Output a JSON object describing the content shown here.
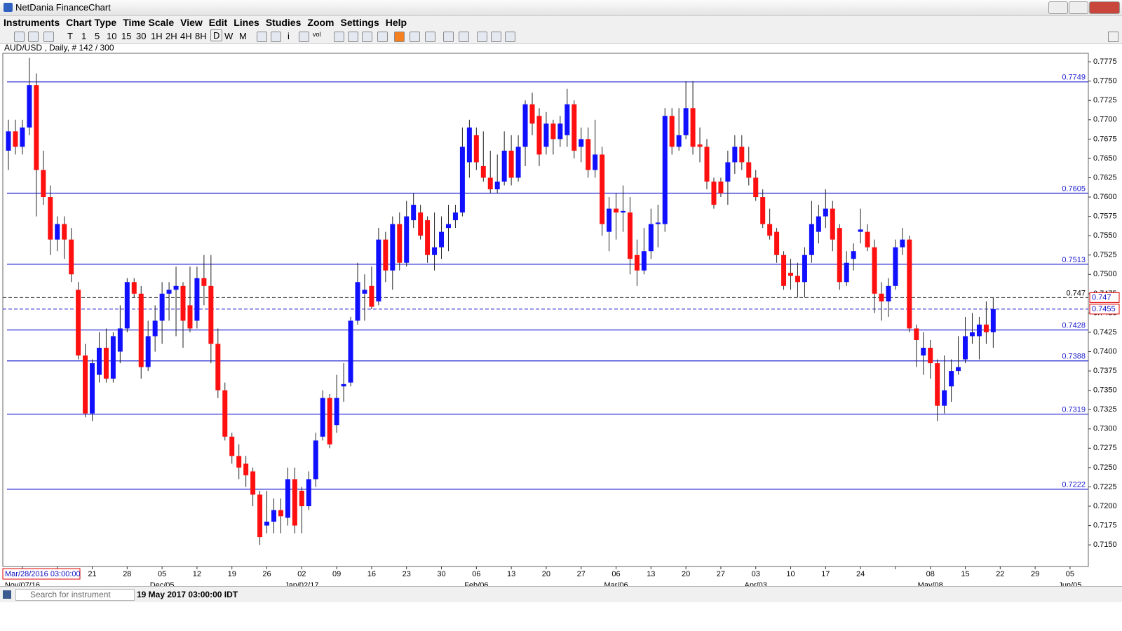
{
  "window_title": "NetDania FinanceChart",
  "menu": [
    "Instruments",
    "Chart Type",
    "Time Scale",
    "View",
    "Edit",
    "Lines",
    "Studies",
    "Zoom",
    "Settings",
    "Help"
  ],
  "toolbar": [
    "T",
    "1",
    "5",
    "10",
    "15",
    "30",
    "1H",
    "2H",
    "4H",
    "8H",
    "D",
    "W",
    "M",
    "i",
    "vol"
  ],
  "search_placeholder": "Search for instrument",
  "status": "19 May 2017 03:00:00 IDT",
  "chart_data": {
    "type": "candlestick",
    "title": "AUD/USD , Daily, # 142 / 300",
    "crosshair_label": "Mar/28/2016 03:00:00",
    "up_color": "#1010ff",
    "down_color": "#ff1010",
    "wick_color": "#222222",
    "ylim": [
      0.7122,
      0.7786
    ],
    "yticks": [
      0.7775,
      {
        "value": 0.775,
        "label": "0.7750"
      },
      0.7725,
      {
        "value": 0.77,
        "label": "0.7700"
      },
      0.7675,
      {
        "value": 0.765,
        "label": "0.7650"
      },
      0.7625,
      {
        "value": 0.76,
        "label": "0.7600"
      },
      0.7575,
      {
        "value": 0.755,
        "label": "0.7550"
      },
      0.7525,
      {
        "value": 0.75,
        "label": "0.7500"
      },
      0.7475,
      {
        "value": 0.745,
        "label": "0.7450"
      },
      0.7425,
      {
        "value": 0.74,
        "label": "0.7400"
      },
      0.7375,
      {
        "value": 0.735,
        "label": "0.7350"
      },
      0.7325,
      {
        "value": 0.73,
        "label": "0.7300"
      },
      0.7275,
      {
        "value": 0.725,
        "label": "0.7250"
      },
      0.7225,
      {
        "value": 0.72,
        "label": "0.7200"
      },
      0.7175,
      {
        "value": 0.715,
        "label": "0.7150"
      }
    ],
    "levels": [
      0.7749,
      0.7605,
      0.7513,
      0.7428,
      0.7388,
      0.7319,
      0.7222
    ],
    "level_color": "#2020d0",
    "high_line": 0.747,
    "last_line": 0.7455,
    "x_day_labels": [
      null,
      null,
      "21",
      "28",
      "05",
      "12",
      "19",
      "26",
      "02",
      "09",
      "16",
      "23",
      "30",
      "06",
      "13",
      "20",
      "27",
      "06",
      "13",
      "20",
      "27",
      "03",
      "10",
      "17",
      "24",
      null,
      "08",
      "15",
      "22",
      "29",
      "05"
    ],
    "x_month_labels": [
      "Nov/07/16",
      null,
      null,
      null,
      "Dec/05",
      null,
      null,
      null,
      "Jan/02/17",
      null,
      null,
      null,
      null,
      "Feb/06",
      null,
      null,
      null,
      "Mar/06",
      null,
      null,
      null,
      "Apr/03",
      null,
      null,
      null,
      null,
      "May/08",
      null,
      null,
      null,
      "Jun/05"
    ],
    "candles": [
      [
        0.766,
        0.77,
        0.7635,
        0.7685
      ],
      [
        0.7685,
        0.77,
        0.7655,
        0.7665
      ],
      [
        0.7665,
        0.77,
        0.7655,
        0.769
      ],
      [
        0.769,
        0.778,
        0.768,
        0.7745
      ],
      [
        0.7745,
        0.776,
        0.7575,
        0.7635
      ],
      [
        0.7635,
        0.766,
        0.759,
        0.76
      ],
      [
        0.76,
        0.7615,
        0.7525,
        0.7545
      ],
      [
        0.7545,
        0.7575,
        0.753,
        0.7565
      ],
      [
        0.7565,
        0.7575,
        0.752,
        0.7545
      ],
      [
        0.7545,
        0.756,
        0.749,
        0.75
      ],
      [
        0.748,
        0.749,
        0.739,
        0.7395
      ],
      [
        0.7395,
        0.741,
        0.7315,
        0.732
      ],
      [
        0.732,
        0.739,
        0.731,
        0.7385
      ],
      [
        0.737,
        0.7425,
        0.736,
        0.7405
      ],
      [
        0.7405,
        0.743,
        0.736,
        0.7365
      ],
      [
        0.7365,
        0.7425,
        0.736,
        0.742
      ],
      [
        0.74,
        0.746,
        0.7385,
        0.743
      ],
      [
        0.743,
        0.7495,
        0.7425,
        0.749
      ],
      [
        0.749,
        0.7495,
        0.747,
        0.7475
      ],
      [
        0.7475,
        0.7485,
        0.7365,
        0.738
      ],
      [
        0.738,
        0.744,
        0.7375,
        0.742
      ],
      [
        0.742,
        0.746,
        0.74,
        0.744
      ],
      [
        0.744,
        0.749,
        0.741,
        0.7475
      ],
      [
        0.7475,
        0.749,
        0.744,
        0.748
      ],
      [
        0.748,
        0.751,
        0.742,
        0.7485
      ],
      [
        0.7485,
        0.749,
        0.7405,
        0.744
      ],
      [
        0.746,
        0.751,
        0.7425,
        0.743
      ],
      [
        0.744,
        0.751,
        0.743,
        0.7495
      ],
      [
        0.7495,
        0.7525,
        0.746,
        0.7485
      ],
      [
        0.7485,
        0.7525,
        0.7385,
        0.741
      ],
      [
        0.741,
        0.743,
        0.734,
        0.735
      ],
      [
        0.735,
        0.736,
        0.7285,
        0.729
      ],
      [
        0.729,
        0.7295,
        0.7255,
        0.7265
      ],
      [
        0.7265,
        0.728,
        0.7235,
        0.725
      ],
      [
        0.7255,
        0.7265,
        0.7225,
        0.724
      ],
      [
        0.7245,
        0.725,
        0.72,
        0.7215
      ],
      [
        0.7215,
        0.722,
        0.715,
        0.716
      ],
      [
        0.7175,
        0.722,
        0.7165,
        0.718
      ],
      [
        0.718,
        0.721,
        0.7165,
        0.7195
      ],
      [
        0.7195,
        0.721,
        0.7165,
        0.7187
      ],
      [
        0.7185,
        0.725,
        0.7175,
        0.7235
      ],
      [
        0.7235,
        0.725,
        0.7165,
        0.7175
      ],
      [
        0.722,
        0.7225,
        0.7165,
        0.72
      ],
      [
        0.72,
        0.7245,
        0.7195,
        0.7235
      ],
      [
        0.7235,
        0.7295,
        0.7225,
        0.7285
      ],
      [
        0.729,
        0.735,
        0.7285,
        0.734
      ],
      [
        0.734,
        0.7345,
        0.7275,
        0.728
      ],
      [
        0.7305,
        0.737,
        0.7295,
        0.734
      ],
      [
        0.7355,
        0.7385,
        0.7335,
        0.7358
      ],
      [
        0.736,
        0.7445,
        0.7355,
        0.744
      ],
      [
        0.744,
        0.7515,
        0.7435,
        0.749
      ],
      [
        0.7475,
        0.75,
        0.744,
        0.748
      ],
      [
        0.7485,
        0.751,
        0.7455,
        0.7458
      ],
      [
        0.7465,
        0.756,
        0.746,
        0.7545
      ],
      [
        0.7545,
        0.7555,
        0.749,
        0.7505
      ],
      [
        0.7505,
        0.7575,
        0.748,
        0.7565
      ],
      [
        0.7565,
        0.758,
        0.7505,
        0.7515
      ],
      [
        0.7515,
        0.7595,
        0.751,
        0.7575
      ],
      [
        0.757,
        0.7605,
        0.756,
        0.759
      ],
      [
        0.758,
        0.759,
        0.7545,
        0.755
      ],
      [
        0.757,
        0.7575,
        0.7515,
        0.7525
      ],
      [
        0.7525,
        0.758,
        0.7505,
        0.7535
      ],
      [
        0.7535,
        0.7575,
        0.752,
        0.7555
      ],
      [
        0.756,
        0.759,
        0.753,
        0.7565
      ],
      [
        0.757,
        0.759,
        0.756,
        0.758
      ],
      [
        0.758,
        0.769,
        0.7575,
        0.7665
      ],
      [
        0.7645,
        0.77,
        0.7625,
        0.769
      ],
      [
        0.768,
        0.769,
        0.7635,
        0.7645
      ],
      [
        0.764,
        0.7685,
        0.762,
        0.7625
      ],
      [
        0.7625,
        0.766,
        0.7605,
        0.761
      ],
      [
        0.761,
        0.7655,
        0.7605,
        0.762
      ],
      [
        0.762,
        0.7685,
        0.7615,
        0.766
      ],
      [
        0.766,
        0.768,
        0.7615,
        0.7625
      ],
      [
        0.7625,
        0.768,
        0.762,
        0.7665
      ],
      [
        0.7665,
        0.7725,
        0.764,
        0.772
      ],
      [
        0.772,
        0.7735,
        0.768,
        0.7695
      ],
      [
        0.7705,
        0.7715,
        0.764,
        0.7655
      ],
      [
        0.7665,
        0.771,
        0.7655,
        0.7695
      ],
      [
        0.7695,
        0.77,
        0.7655,
        0.7675
      ],
      [
        0.7675,
        0.7705,
        0.7665,
        0.7695
      ],
      [
        0.768,
        0.774,
        0.7665,
        0.772
      ],
      [
        0.772,
        0.7725,
        0.765,
        0.766
      ],
      [
        0.7665,
        0.769,
        0.7645,
        0.7675
      ],
      [
        0.7675,
        0.769,
        0.7625,
        0.7635
      ],
      [
        0.7635,
        0.77,
        0.7625,
        0.7655
      ],
      [
        0.7655,
        0.7665,
        0.755,
        0.7565
      ],
      [
        0.7555,
        0.76,
        0.753,
        0.7585
      ],
      [
        0.7585,
        0.7605,
        0.7545,
        0.758
      ],
      [
        0.758,
        0.7615,
        0.7555,
        0.7582
      ],
      [
        0.758,
        0.76,
        0.75,
        0.752
      ],
      [
        0.7525,
        0.7545,
        0.7485,
        0.7505
      ],
      [
        0.7505,
        0.756,
        0.75,
        0.753
      ],
      [
        0.753,
        0.7585,
        0.752,
        0.7565
      ],
      [
        0.7565,
        0.759,
        0.7535,
        0.7567
      ],
      [
        0.7565,
        0.7715,
        0.7555,
        0.7705
      ],
      [
        0.7705,
        0.7715,
        0.7655,
        0.7665
      ],
      [
        0.7665,
        0.7715,
        0.766,
        0.768
      ],
      [
        0.768,
        0.775,
        0.7675,
        0.7715
      ],
      [
        0.7715,
        0.775,
        0.7655,
        0.7665
      ],
      [
        0.7668,
        0.769,
        0.7645,
        0.7665
      ],
      [
        0.7665,
        0.7675,
        0.761,
        0.762
      ],
      [
        0.762,
        0.7625,
        0.7585,
        0.759
      ],
      [
        0.762,
        0.7625,
        0.76,
        0.7605
      ],
      [
        0.762,
        0.766,
        0.759,
        0.7645
      ],
      [
        0.7645,
        0.768,
        0.763,
        0.7665
      ],
      [
        0.7665,
        0.768,
        0.7635,
        0.7645
      ],
      [
        0.7645,
        0.7665,
        0.7615,
        0.7625
      ],
      [
        0.7625,
        0.7635,
        0.7595,
        0.76
      ],
      [
        0.76,
        0.761,
        0.756,
        0.7565
      ],
      [
        0.7565,
        0.7585,
        0.7545,
        0.755
      ],
      [
        0.7555,
        0.756,
        0.7515,
        0.7525
      ],
      [
        0.7525,
        0.753,
        0.748,
        0.7485
      ],
      [
        0.7502,
        0.752,
        0.748,
        0.7498
      ],
      [
        0.7498,
        0.7515,
        0.747,
        0.749
      ],
      [
        0.749,
        0.7535,
        0.747,
        0.7525
      ],
      [
        0.7525,
        0.7595,
        0.7515,
        0.7565
      ],
      [
        0.7555,
        0.759,
        0.754,
        0.7575
      ],
      [
        0.7575,
        0.761,
        0.756,
        0.7585
      ],
      [
        0.7585,
        0.7595,
        0.753,
        0.7545
      ],
      [
        0.756,
        0.7565,
        0.748,
        0.749
      ],
      [
        0.749,
        0.753,
        0.7485,
        0.7515
      ],
      [
        0.752,
        0.754,
        0.7505,
        0.753
      ],
      [
        0.7555,
        0.7585,
        0.754,
        0.7558
      ],
      [
        0.7555,
        0.7565,
        0.753,
        0.7535
      ],
      [
        0.7535,
        0.7545,
        0.745,
        0.7475
      ],
      [
        0.7475,
        0.749,
        0.744,
        0.7465
      ],
      [
        0.7465,
        0.7495,
        0.7445,
        0.7485
      ],
      [
        0.7485,
        0.7545,
        0.748,
        0.7535
      ],
      [
        0.7535,
        0.756,
        0.7525,
        0.7545
      ],
      [
        0.7545,
        0.755,
        0.7425,
        0.743
      ],
      [
        0.743,
        0.7435,
        0.738,
        0.7415
      ],
      [
        0.7395,
        0.7425,
        0.737,
        0.7405
      ],
      [
        0.7405,
        0.7415,
        0.7365,
        0.7385
      ],
      [
        0.7385,
        0.739,
        0.731,
        0.733
      ],
      [
        0.733,
        0.7395,
        0.732,
        0.735
      ],
      [
        0.7355,
        0.739,
        0.7335,
        0.7375
      ],
      [
        0.7375,
        0.742,
        0.737,
        0.738
      ],
      [
        0.739,
        0.7445,
        0.7385,
        0.742
      ],
      [
        0.742,
        0.745,
        0.741,
        0.7425
      ],
      [
        0.742,
        0.7445,
        0.739,
        0.7435
      ],
      [
        0.7435,
        0.7465,
        0.741,
        0.7425
      ],
      [
        0.7425,
        0.747,
        0.7405,
        0.7455
      ]
    ]
  }
}
